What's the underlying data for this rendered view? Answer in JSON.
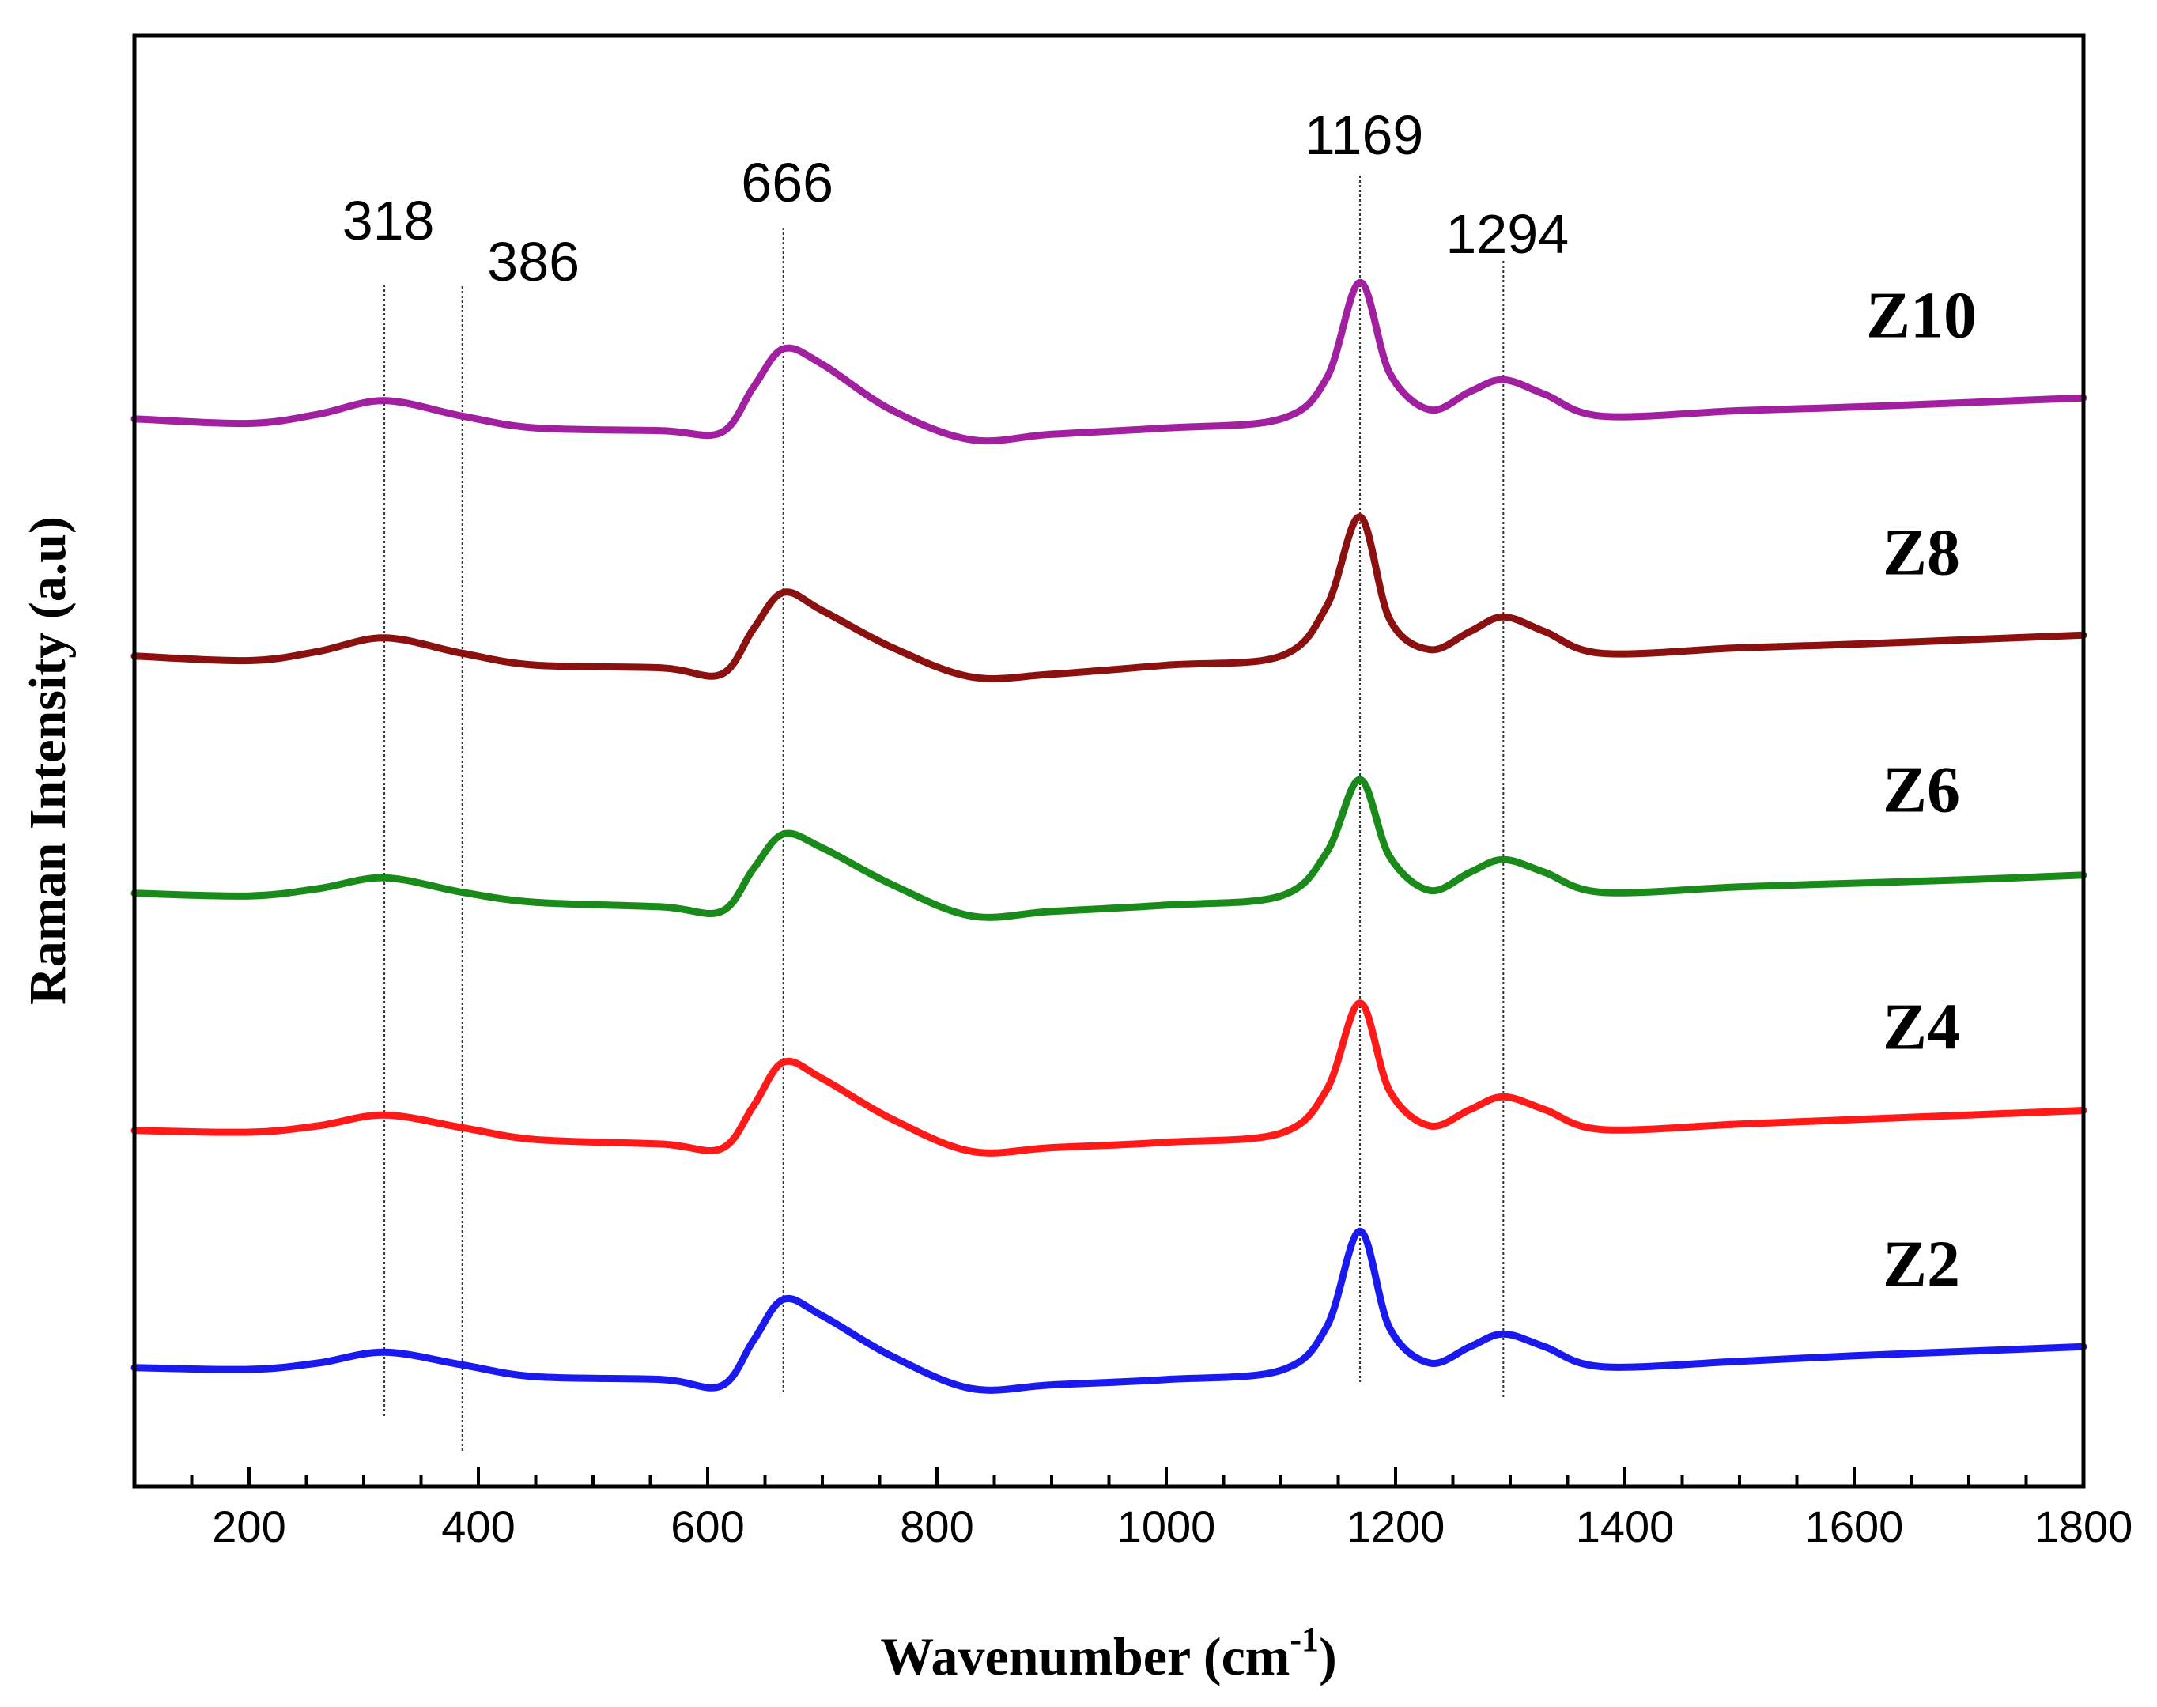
{
  "chart_data": {
    "type": "line",
    "xlabel": "Wavenumber (cm",
    "xlabel_sup": "-1",
    "xlabel_close": ")",
    "ylabel": "Raman Intensity (a.u)",
    "xlim": [
      100,
      1800
    ],
    "x_ticks": [
      200,
      400,
      600,
      800,
      1000,
      1200,
      1400,
      1600,
      1800
    ],
    "y_ticks_shown": false,
    "grid": false,
    "legend": "none",
    "annotations": [
      {
        "text": "318",
        "x": 318
      },
      {
        "text": "386",
        "x": 386
      },
      {
        "text": "666",
        "x": 666
      },
      {
        "text": "1169",
        "x": 1169
      },
      {
        "text": "1294",
        "x": 1294
      }
    ],
    "reference_lines_x": [
      318,
      386,
      666,
      1169,
      1294
    ],
    "series": [
      {
        "name": "Z10",
        "color": "#a020a0",
        "offset": 4,
        "x": [
          100,
          200,
          260,
          318,
          386,
          450,
          560,
          612,
          640,
          666,
          700,
          760,
          830,
          900,
          1000,
          1100,
          1140,
          1169,
          1195,
          1230,
          1265,
          1294,
          1330,
          1380,
          1500,
          1600,
          1700,
          1800
        ],
        "y": [
          0.35,
          0.3,
          0.4,
          0.55,
          0.38,
          0.25,
          0.22,
          0.2,
          0.7,
          1.12,
          0.95,
          0.45,
          0.12,
          0.18,
          0.25,
          0.35,
          0.8,
          1.85,
          0.85,
          0.45,
          0.65,
          0.78,
          0.62,
          0.38,
          0.44,
          0.48,
          0.53,
          0.58
        ]
      },
      {
        "name": "Z8",
        "color": "#8b1010",
        "offset": 3,
        "x": [
          100,
          200,
          260,
          318,
          386,
          450,
          560,
          612,
          640,
          666,
          700,
          760,
          830,
          900,
          1000,
          1100,
          1140,
          1169,
          1195,
          1230,
          1265,
          1294,
          1330,
          1380,
          1500,
          1600,
          1700,
          1800
        ],
        "y": [
          0.35,
          0.3,
          0.4,
          0.55,
          0.38,
          0.25,
          0.22,
          0.15,
          0.65,
          1.05,
          0.85,
          0.45,
          0.12,
          0.15,
          0.25,
          0.35,
          0.9,
          1.88,
          0.75,
          0.42,
          0.62,
          0.78,
          0.62,
          0.38,
          0.44,
          0.48,
          0.53,
          0.58
        ]
      },
      {
        "name": "Z6",
        "color": "#1a8a1a",
        "offset": 2,
        "x": [
          100,
          200,
          260,
          318,
          386,
          450,
          560,
          612,
          640,
          666,
          700,
          760,
          830,
          900,
          1000,
          1100,
          1140,
          1169,
          1195,
          1230,
          1265,
          1294,
          1330,
          1380,
          1500,
          1600,
          1700,
          1800
        ],
        "y": [
          0.35,
          0.32,
          0.4,
          0.52,
          0.36,
          0.25,
          0.2,
          0.15,
          0.62,
          1.0,
          0.85,
          0.45,
          0.1,
          0.15,
          0.22,
          0.32,
          0.8,
          1.6,
          0.75,
          0.38,
          0.58,
          0.72,
          0.58,
          0.36,
          0.42,
          0.46,
          0.5,
          0.55
        ]
      },
      {
        "name": "Z4",
        "color": "#ff1a1a",
        "offset": 1,
        "x": [
          100,
          200,
          260,
          318,
          386,
          450,
          560,
          612,
          640,
          666,
          700,
          760,
          830,
          900,
          1000,
          1100,
          1140,
          1169,
          1195,
          1230,
          1265,
          1294,
          1330,
          1380,
          1500,
          1600,
          1700,
          1800
        ],
        "y": [
          0.35,
          0.33,
          0.4,
          0.52,
          0.38,
          0.25,
          0.2,
          0.15,
          0.62,
          1.1,
          0.92,
          0.48,
          0.12,
          0.16,
          0.22,
          0.32,
          0.8,
          1.75,
          0.78,
          0.4,
          0.58,
          0.72,
          0.58,
          0.36,
          0.42,
          0.47,
          0.52,
          0.57
        ]
      },
      {
        "name": "Z2",
        "color": "#1a1aee",
        "offset": 0,
        "x": [
          100,
          200,
          260,
          318,
          386,
          450,
          560,
          612,
          640,
          666,
          700,
          760,
          830,
          900,
          1000,
          1100,
          1140,
          1169,
          1195,
          1230,
          1265,
          1294,
          1330,
          1380,
          1500,
          1600,
          1700,
          1800
        ],
        "y": [
          0.35,
          0.33,
          0.4,
          0.52,
          0.38,
          0.25,
          0.22,
          0.15,
          0.65,
          1.1,
          0.92,
          0.48,
          0.12,
          0.16,
          0.22,
          0.32,
          0.8,
          1.85,
          0.78,
          0.4,
          0.58,
          0.72,
          0.58,
          0.36,
          0.42,
          0.48,
          0.53,
          0.58
        ]
      }
    ]
  }
}
